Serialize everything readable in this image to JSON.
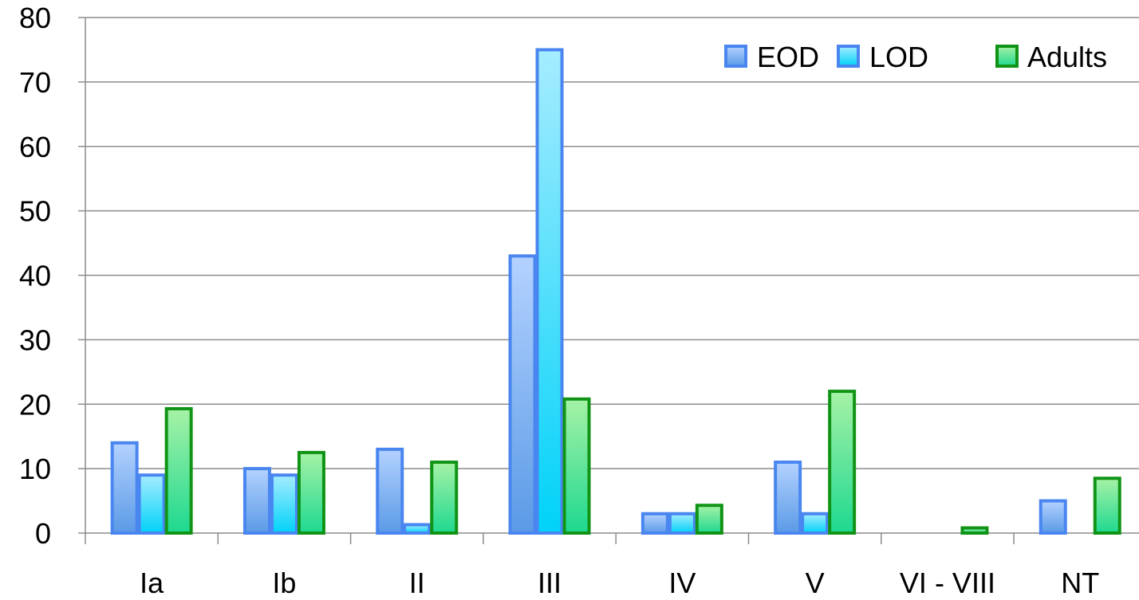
{
  "chart_data": {
    "type": "bar",
    "title": "",
    "xlabel": "",
    "ylabel": "",
    "ylim": [
      0,
      80
    ],
    "yticks": [
      0,
      10,
      20,
      30,
      40,
      50,
      60,
      70,
      80
    ],
    "grid": true,
    "legend_position": "top-right",
    "categories": [
      "Ia",
      "Ib",
      "II",
      "III",
      "IV",
      "V",
      "VI - VIII",
      "NT"
    ],
    "series": [
      {
        "name": "EOD",
        "values": [
          14,
          10,
          13,
          43,
          3,
          11,
          0,
          5
        ],
        "color_top": "#b4d2ff",
        "color_bottom": "#5a9ae6",
        "stroke": "#4a86f0"
      },
      {
        "name": "LOD",
        "values": [
          9,
          9,
          1.3,
          75,
          3,
          3,
          0,
          0
        ],
        "color_top": "#a6ecff",
        "color_bottom": "#00d2f8",
        "stroke": "#4a86f0"
      },
      {
        "name": "Adults",
        "values": [
          19.3,
          12.5,
          11,
          20.8,
          4.3,
          22,
          0.8,
          8.5
        ],
        "color_top": "#a6f2a6",
        "color_bottom": "#1ed890",
        "stroke": "#119416"
      }
    ]
  }
}
